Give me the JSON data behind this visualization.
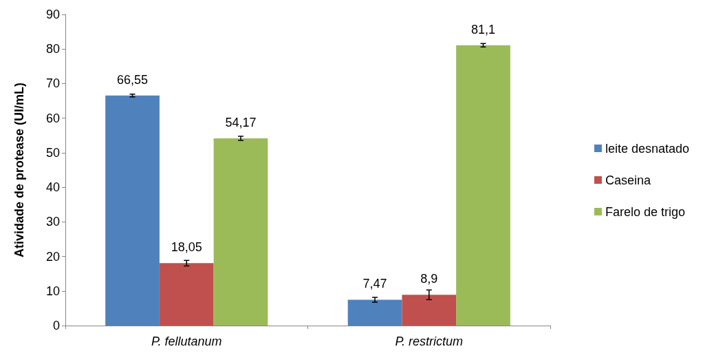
{
  "chart_data": {
    "type": "bar",
    "ylabel": "Atividade de protease (UI/mL)",
    "categories": [
      "P. fellutanum",
      "P. restrictum"
    ],
    "series": [
      {
        "name": "leite desnatado",
        "color": "#4f81bd",
        "values": [
          66.55,
          7.47
        ],
        "errors": [
          0.4,
          0.7
        ],
        "value_labels": [
          "66,55",
          "7,47"
        ]
      },
      {
        "name": "Caseina",
        "color": "#c0504d",
        "values": [
          18.05,
          8.9
        ],
        "errors": [
          0.8,
          1.4
        ],
        "value_labels": [
          "18,05",
          "8,9"
        ]
      },
      {
        "name": "Farelo de trigo",
        "color": "#9bbb59",
        "values": [
          54.17,
          81.1
        ],
        "errors": [
          0.6,
          0.5
        ],
        "value_labels": [
          "54,17",
          "81,1"
        ]
      }
    ],
    "ylim": [
      0,
      90
    ],
    "yticks": [
      0,
      10,
      20,
      30,
      40,
      50,
      60,
      70,
      80,
      90
    ],
    "grid": false,
    "legend": "right"
  }
}
